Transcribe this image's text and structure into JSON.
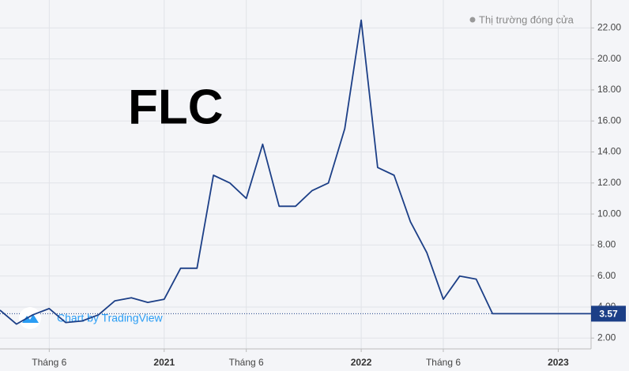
{
  "chart_data": {
    "type": "line",
    "title": "FLC",
    "status": "Thị trường đóng cửa",
    "credit": "Chart by TradingView",
    "x": [
      "2020-03",
      "2020-04",
      "2020-05",
      "2020-06",
      "2020-07",
      "2020-08",
      "2020-09",
      "2020-10",
      "2020-11",
      "2020-12",
      "2021-01",
      "2021-02",
      "2021-03",
      "2021-04",
      "2021-05",
      "2021-06",
      "2021-07",
      "2021-08",
      "2021-09",
      "2021-10",
      "2021-11",
      "2021-12",
      "2022-01",
      "2022-02",
      "2022-03",
      "2022-04",
      "2022-05",
      "2022-06",
      "2022-07",
      "2022-08",
      "2022-09",
      "2022-10",
      "2022-11",
      "2022-12",
      "2023-01",
      "2023-02",
      "2023-03"
    ],
    "values": [
      3.8,
      2.9,
      3.5,
      3.9,
      3.0,
      3.1,
      3.5,
      4.4,
      4.6,
      4.3,
      4.5,
      6.5,
      6.5,
      12.5,
      12.0,
      11.0,
      14.5,
      10.5,
      10.5,
      11.5,
      12.0,
      15.5,
      22.5,
      13.0,
      12.5,
      9.5,
      7.5,
      4.5,
      6.0,
      5.8,
      3.57,
      3.57,
      3.57,
      3.57,
      3.57,
      3.57,
      3.57
    ],
    "color": "#1c3f87",
    "last_value": 3.57,
    "xlim": [
      "2020-03",
      "2023-03"
    ],
    "xticks": [
      {
        "value": "2020-06",
        "label": "Tháng 6"
      },
      {
        "value": "2021-01",
        "label": "2021"
      },
      {
        "value": "2021-06",
        "label": "Tháng 6"
      },
      {
        "value": "2022-01",
        "label": "2022"
      },
      {
        "value": "2022-06",
        "label": "Tháng 6"
      },
      {
        "value": "2023-01",
        "label": "2023"
      }
    ],
    "ylim": [
      1.3,
      23.8
    ],
    "yticks": [
      {
        "value": 2,
        "label": "2.00"
      },
      {
        "value": 4,
        "label": "4.00"
      },
      {
        "value": 6,
        "label": "6.00"
      },
      {
        "value": 8,
        "label": "8.00"
      },
      {
        "value": 10,
        "label": "10.00"
      },
      {
        "value": 12,
        "label": "12.00"
      },
      {
        "value": 14,
        "label": "14.00"
      },
      {
        "value": 16,
        "label": "16.00"
      },
      {
        "value": 18,
        "label": "18.00"
      },
      {
        "value": 20,
        "label": "20.00"
      },
      {
        "value": 22,
        "label": "22.00"
      }
    ],
    "grid": true
  }
}
